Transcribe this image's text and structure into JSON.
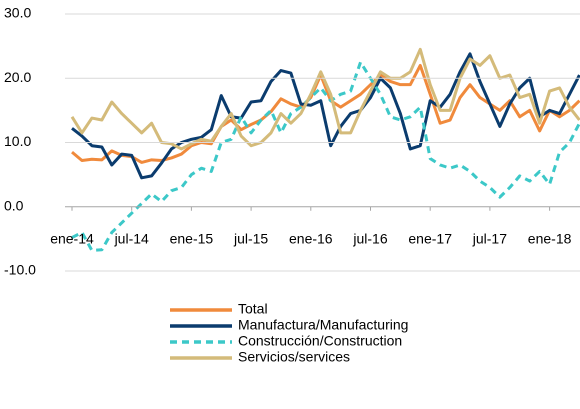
{
  "chart_data": {
    "type": "line",
    "categories": [
      "ene-14",
      null,
      null,
      null,
      null,
      null,
      "jul-14",
      null,
      null,
      null,
      null,
      null,
      "ene-15",
      null,
      null,
      null,
      null,
      null,
      "jul-15",
      null,
      null,
      null,
      null,
      null,
      "ene-16",
      null,
      null,
      null,
      null,
      null,
      "jul-16",
      null,
      null,
      null,
      null,
      null,
      "ene-17",
      null,
      null,
      null,
      null,
      null,
      "jul-17",
      null,
      null,
      null,
      null,
      null,
      "ene-18",
      null,
      null,
      null
    ],
    "series": [
      {
        "name": "Total",
        "color": "#f08a3c",
        "dashed": false,
        "values": [
          8.5,
          7.2,
          7.4,
          7.3,
          8.7,
          8.0,
          7.8,
          6.9,
          7.3,
          7.2,
          7.6,
          8.2,
          9.5,
          10.0,
          9.8,
          12.5,
          13.5,
          12.0,
          12.8,
          13.5,
          14.8,
          16.8,
          16.0,
          15.5,
          17.0,
          20.5,
          16.5,
          15.5,
          16.5,
          17.5,
          19.0,
          20.5,
          19.5,
          19.0,
          19.0,
          22.0,
          17.5,
          13.0,
          13.5,
          17.0,
          19.0,
          17.0,
          16.0,
          15.0,
          16.5,
          14.0,
          15.0,
          11.8,
          15.0,
          14.0,
          15.0,
          16.5
        ]
      },
      {
        "name": "Manufactura/Manufacturing",
        "color": "#0b3c6e",
        "dashed": false,
        "values": [
          12.2,
          11.0,
          9.5,
          9.3,
          6.5,
          8.2,
          8.0,
          4.5,
          4.8,
          6.8,
          9.0,
          10.0,
          10.5,
          10.8,
          12.0,
          17.3,
          14.0,
          13.8,
          16.3,
          16.5,
          19.5,
          21.2,
          20.8,
          16.0,
          15.8,
          16.5,
          9.5,
          12.5,
          14.5,
          15.0,
          17.0,
          20.0,
          18.5,
          14.5,
          9.0,
          9.5,
          16.5,
          15.5,
          17.5,
          21.0,
          23.8,
          19.5,
          16.0,
          12.5,
          16.0,
          18.5,
          20.0,
          14.0,
          15.0,
          14.5,
          17.5,
          20.5
        ]
      },
      {
        "name": "Construcción/Construction",
        "color": "#3cc8c8",
        "dashed": true,
        "values": [
          -4.8,
          -4.0,
          -6.8,
          -6.7,
          -4.0,
          -2.5,
          -1.0,
          0.5,
          2.0,
          0.8,
          2.5,
          3.0,
          5.0,
          6.0,
          5.5,
          10.0,
          10.5,
          14.0,
          11.5,
          13.5,
          15.0,
          11.5,
          14.5,
          15.5,
          17.0,
          18.5,
          16.5,
          17.5,
          18.0,
          22.5,
          20.0,
          17.5,
          14.0,
          13.5,
          14.0,
          15.5,
          7.5,
          6.5,
          6.0,
          6.5,
          5.5,
          4.0,
          3.0,
          1.5,
          3.0,
          4.8,
          4.0,
          5.5,
          3.5,
          8.5,
          10.0,
          13.0
        ]
      },
      {
        "name": "Servicios/services",
        "color": "#d4bb7a",
        "dashed": false,
        "values": [
          14.0,
          11.5,
          13.8,
          13.5,
          16.3,
          14.5,
          13.0,
          11.5,
          13.0,
          10.0,
          9.8,
          9.0,
          9.8,
          10.5,
          10.2,
          12.5,
          14.5,
          11.0,
          9.5,
          10.0,
          11.5,
          14.5,
          13.0,
          14.5,
          17.5,
          21.0,
          17.5,
          11.5,
          11.5,
          15.0,
          18.0,
          21.0,
          20.0,
          20.0,
          21.0,
          24.5,
          19.0,
          15.0,
          15.0,
          20.0,
          23.0,
          22.0,
          23.5,
          20.0,
          20.5,
          17.0,
          17.5,
          13.0,
          18.0,
          18.5,
          15.5,
          13.5
        ]
      }
    ],
    "ylim": [
      -10,
      30
    ],
    "yticks": [
      {
        "value": -10,
        "label": "-10.0"
      },
      {
        "value": 0,
        "label": "0.0"
      },
      {
        "value": 10,
        "label": "10.0"
      },
      {
        "value": 20,
        "label": "20.0"
      },
      {
        "value": 30,
        "label": "30.0"
      }
    ],
    "grid": true
  }
}
